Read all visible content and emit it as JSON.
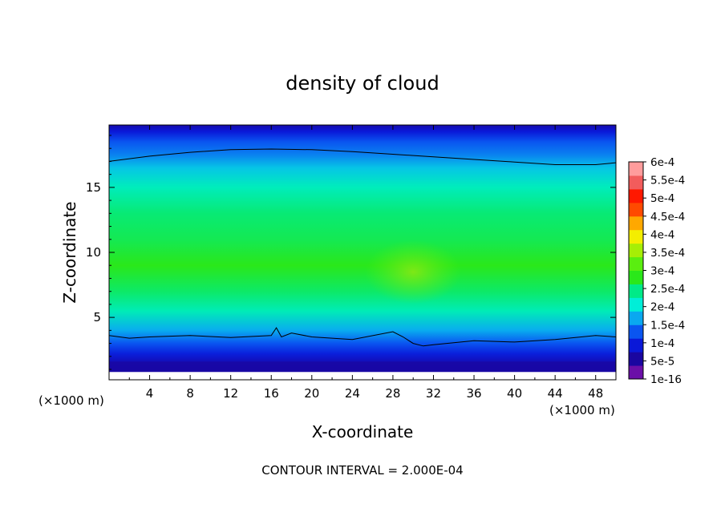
{
  "chart_data": {
    "type": "heatmap",
    "title": "density of cloud",
    "xlabel": "X-coordinate",
    "ylabel": "Z-coordinate",
    "x_unit": "(×1000 m)",
    "z_unit": "(×1000 m)",
    "xlim": [
      0,
      50
    ],
    "ylim": [
      0.2,
      19.8
    ],
    "x_ticks": [
      4,
      8,
      12,
      16,
      20,
      24,
      28,
      32,
      36,
      40,
      44,
      48
    ],
    "y_ticks": [
      5,
      10,
      15
    ],
    "colorbar": {
      "labels": [
        "1e-16",
        "5e-5",
        "1e-4",
        "1.5e-4",
        "2e-4",
        "2.5e-4",
        "3e-4",
        "3.5e-4",
        "4e-4",
        "4.5e-4",
        "5e-4",
        "5.5e-4",
        "6e-4"
      ],
      "colors": [
        "#6b0fa8",
        "#1a06a0",
        "#0a18d8",
        "#0a55f0",
        "#0aa8f0",
        "#00eed8",
        "#00ea88",
        "#2ae81a",
        "#5aee10",
        "#a6ee06",
        "#f4ee00",
        "#ffa800",
        "#ff4a00",
        "#ff1800",
        "#f25c5c",
        "#ff9c9c"
      ]
    },
    "profile_z": [
      0.2,
      0.9,
      1.5,
      2.2,
      3.0,
      4.0,
      5.5,
      7.0,
      9.0,
      11.0,
      13.0,
      15.0,
      16.5,
      17.5,
      18.5,
      19.3,
      19.8
    ],
    "profile_density": [
      5.5e-05,
      7e-05,
      8e-05,
      0.00011,
      0.00015,
      0.000205,
      0.000285,
      0.000325,
      0.00035,
      0.00034,
      0.000315,
      0.00028,
      0.000235,
      0.000195,
      0.00015,
      0.0001,
      7e-05
    ],
    "core_maximum": {
      "x": 30,
      "z": 8.5,
      "density": 0.000375
    },
    "contour_lines": [
      {
        "level": 0.0002,
        "x": [
          0,
          4,
          8,
          12,
          16,
          20,
          24,
          28,
          32,
          36,
          40,
          44,
          48,
          50
        ],
        "z": [
          17.0,
          17.4,
          17.7,
          17.9,
          17.95,
          17.9,
          17.75,
          17.55,
          17.35,
          17.15,
          16.95,
          16.75,
          16.75,
          16.9
        ]
      },
      {
        "level": 0.0002,
        "x": [
          0,
          2,
          4,
          8,
          12,
          16,
          16.5,
          17,
          18,
          20,
          24,
          28,
          29,
          30,
          31,
          32,
          36,
          40,
          44,
          48,
          50
        ],
        "z": [
          3.6,
          3.4,
          3.5,
          3.6,
          3.45,
          3.6,
          4.2,
          3.5,
          3.8,
          3.5,
          3.3,
          3.9,
          3.5,
          3.0,
          2.8,
          2.9,
          3.2,
          3.1,
          3.3,
          3.6,
          3.5
        ]
      }
    ],
    "footer_text": "CONTOUR INTERVAL = 2.000E-04"
  }
}
